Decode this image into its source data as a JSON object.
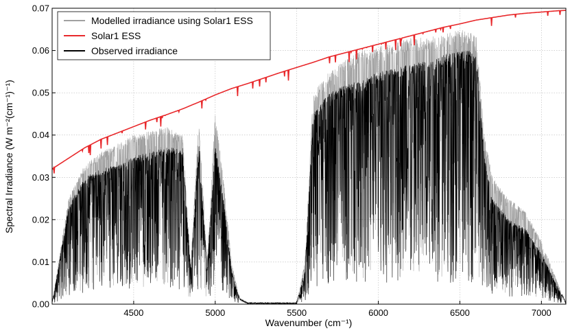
{
  "chart_data": {
    "type": "line",
    "title": "",
    "xlabel": "Wavenumber (cm⁻¹)",
    "ylabel": "Spectral Irradiance (W m⁻²(cm⁻¹)⁻¹)",
    "xlim": [
      4000,
      7150
    ],
    "ylim": [
      0.0,
      0.07
    ],
    "xticks": [
      4500,
      5000,
      5500,
      6000,
      6500,
      7000
    ],
    "xtick_labels": [
      "4500",
      "5000",
      "5500",
      "6000",
      "6500",
      "7000"
    ],
    "yticks": [
      0.0,
      0.01,
      0.02,
      0.03,
      0.04,
      0.05,
      0.06,
      0.07
    ],
    "ytick_labels": [
      "0.00",
      "0.01",
      "0.02",
      "0.03",
      "0.04",
      "0.05",
      "0.06",
      "0.07"
    ],
    "grid": true,
    "legend_position": "top-left",
    "series": [
      {
        "name": "Modelled irradiance using Solar1 ESS",
        "color": "#a0a0a0",
        "style": "dense-absorption-spectrum",
        "x": [
          4000,
          4100,
          4200,
          4300,
          4400,
          4500,
          4600,
          4700,
          4800,
          4850,
          4900,
          4950,
          5000,
          5050,
          5100,
          5150,
          5200,
          5300,
          5400,
          5500,
          5550,
          5600,
          5700,
          5800,
          5900,
          6000,
          6100,
          6200,
          6300,
          6400,
          6500,
          6600,
          6650,
          6700,
          6800,
          6900,
          7000,
          7100,
          7150
        ],
        "y": [
          0.0,
          0.025,
          0.033,
          0.036,
          0.038,
          0.04,
          0.041,
          0.042,
          0.04,
          0.01,
          0.044,
          0.01,
          0.045,
          0.03,
          0.01,
          0.001,
          0.0,
          0.0,
          0.0,
          0.0,
          0.01,
          0.05,
          0.055,
          0.058,
          0.06,
          0.061,
          0.062,
          0.063,
          0.063,
          0.064,
          0.065,
          0.064,
          0.04,
          0.03,
          0.025,
          0.022,
          0.015,
          0.005,
          0.0
        ]
      },
      {
        "name": "Solar1 ESS",
        "color": "#e8282b",
        "x": [
          4000,
          4100,
          4200,
          4300,
          4400,
          4500,
          4600,
          4700,
          4800,
          4900,
          5000,
          5100,
          5200,
          5300,
          5400,
          5500,
          5600,
          5700,
          5800,
          5900,
          6000,
          6100,
          6200,
          6300,
          6400,
          6500,
          6600,
          6700,
          6800,
          6900,
          7000,
          7100,
          7150
        ],
        "y": [
          0.032,
          0.0345,
          0.037,
          0.039,
          0.0405,
          0.042,
          0.0435,
          0.0448,
          0.0462,
          0.0478,
          0.0495,
          0.051,
          0.0522,
          0.0535,
          0.0548,
          0.056,
          0.0572,
          0.0585,
          0.0595,
          0.0605,
          0.0615,
          0.0625,
          0.0635,
          0.0645,
          0.0655,
          0.0663,
          0.0672,
          0.0678,
          0.0684,
          0.0688,
          0.0691,
          0.0694,
          0.0695
        ]
      },
      {
        "name": "Observed irradiance",
        "color": "#000000",
        "style": "dense-absorption-spectrum",
        "x": [
          4000,
          4100,
          4200,
          4300,
          4400,
          4500,
          4600,
          4700,
          4800,
          4850,
          4900,
          4950,
          5000,
          5050,
          5100,
          5150,
          5200,
          5300,
          5400,
          5500,
          5550,
          5600,
          5700,
          5800,
          5900,
          6000,
          6100,
          6200,
          6300,
          6400,
          6500,
          6600,
          6650,
          6700,
          6800,
          6900,
          7000,
          7100,
          7150
        ],
        "y": [
          0.0,
          0.023,
          0.03,
          0.032,
          0.033,
          0.035,
          0.036,
          0.037,
          0.037,
          0.008,
          0.039,
          0.008,
          0.038,
          0.025,
          0.008,
          0.001,
          0.0,
          0.0,
          0.0,
          0.0,
          0.008,
          0.045,
          0.05,
          0.052,
          0.053,
          0.055,
          0.056,
          0.057,
          0.058,
          0.059,
          0.06,
          0.06,
          0.035,
          0.025,
          0.02,
          0.018,
          0.012,
          0.004,
          0.0
        ]
      }
    ]
  }
}
